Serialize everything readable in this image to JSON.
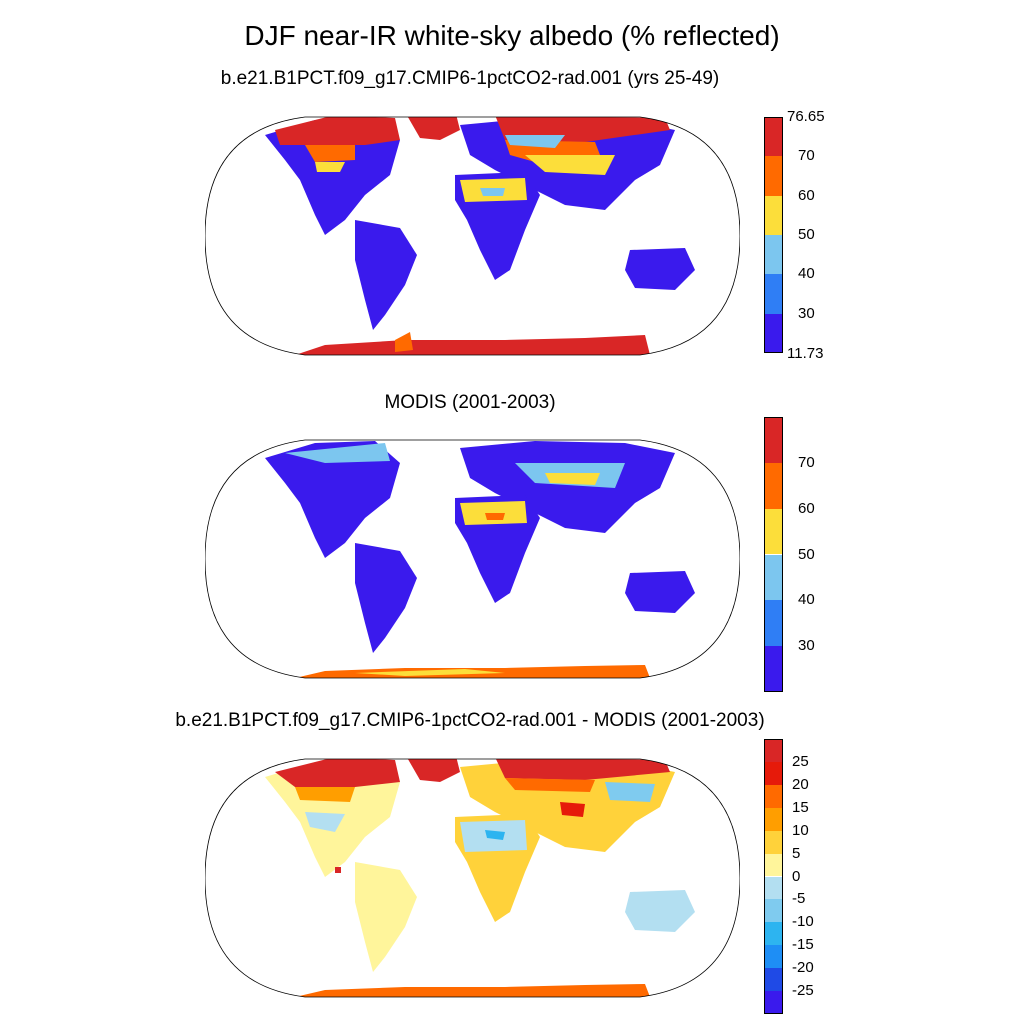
{
  "title": "DJF near-IR white-sky albedo (% reflected)",
  "panels": [
    {
      "title": "b.e21.B1PCT.f09_g17.CMIP6-1pctCO2-rad.001 (yrs 25-49)",
      "colorbar": {
        "colors": [
          "#3a1aed",
          "#2f7ef5",
          "#7cc6ef",
          "#fcde3a",
          "#ff6a00",
          "#d92626"
        ],
        "labels": [
          "70",
          "60",
          "50",
          "40",
          "30"
        ],
        "max_label": "76.65",
        "min_label": "11.73"
      }
    },
    {
      "title": "MODIS (2001-2003)",
      "colorbar": {
        "colors": [
          "#3a1aed",
          "#2f7ef5",
          "#7cc6ef",
          "#fcde3a",
          "#ff6a00",
          "#d92626"
        ],
        "labels": [
          "70",
          "60",
          "50",
          "40",
          "30"
        ]
      }
    },
    {
      "title": "b.e21.B1PCT.f09_g17.CMIP6-1pctCO2-rad.001 - MODIS (2001-2003)",
      "colorbar": {
        "colors": [
          "#3a1aed",
          "#1f4ae6",
          "#1e8ef5",
          "#2db4f0",
          "#7fcbef",
          "#b3dff1",
          "#fff59b",
          "#ffd23a",
          "#ff9e00",
          "#ff6a00",
          "#e61a0a",
          "#d92626"
        ],
        "labels": [
          "25",
          "20",
          "15",
          "10",
          "5",
          "0",
          "-5",
          "-10",
          "-15",
          "-20",
          "-25"
        ]
      }
    }
  ]
}
